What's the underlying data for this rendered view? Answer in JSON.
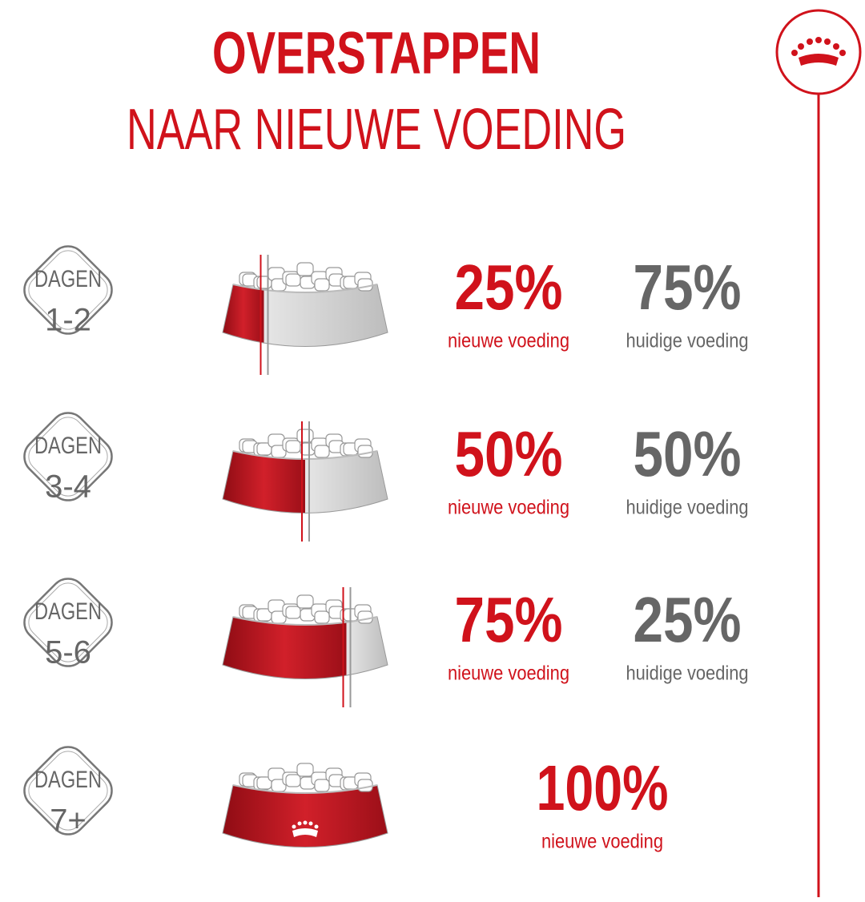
{
  "header": {
    "title": "OVERSTAPPEN",
    "subtitle": "NAAR NIEUWE VOEDING"
  },
  "rows": [
    {
      "days": [
        "DAGEN",
        "1-2"
      ],
      "new": {
        "value": 25,
        "label": "25%"
      },
      "new_caption": "nieuwe voeding",
      "old": {
        "value": 75,
        "label": "75%"
      },
      "old_caption": "huidige voeding"
    },
    {
      "days": [
        "DAGEN",
        "3-4"
      ],
      "new": {
        "value": 50,
        "label": "50%"
      },
      "new_caption": "nieuwe voeding",
      "old": {
        "value": 50,
        "label": "50%"
      },
      "old_caption": "huidige voeding"
    },
    {
      "days": [
        "DAGEN",
        "5-6"
      ],
      "new": {
        "value": 75,
        "label": "75%"
      },
      "new_caption": "nieuwe voeding",
      "old": {
        "value": 25,
        "label": "25%"
      },
      "old_caption": "huidige voeding"
    },
    {
      "days": [
        "DAGEN",
        "7+"
      ],
      "new": {
        "value": 100,
        "label": "100%"
      },
      "new_caption": "nieuwe voeding"
    }
  ]
}
